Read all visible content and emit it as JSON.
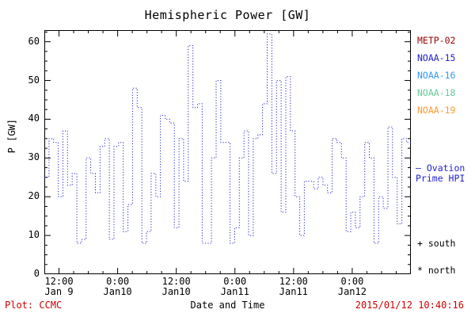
{
  "footer": {
    "left": "Plot: CCMC",
    "right": "2015/01/12 10:40:16",
    "color": "#cc0000"
  },
  "legend": {
    "satellites": [
      {
        "label": "METP-02",
        "color": "#990000"
      },
      {
        "label": "NOAA-15",
        "color": "#2222cc"
      },
      {
        "label": "NOAA-16",
        "color": "#3399ff"
      },
      {
        "label": "NOAA-18",
        "color": "#66cc99"
      },
      {
        "label": "NOAA-19",
        "color": "#ff9933"
      }
    ],
    "ovation": [
      "– Ovation",
      "Prime HPI"
    ],
    "markers": [
      "+ south",
      "* north"
    ]
  },
  "chart_data": {
    "type": "line",
    "subtype": "step-post",
    "line_style": "dotted",
    "title": "Hemispheric Power [GW]",
    "grid": false,
    "series": [
      {
        "name": "Ovation Prime HPI",
        "color": "#2222cc",
        "x_start_hour": 9,
        "x_step_hours": 0.95,
        "values": [
          25,
          35,
          34,
          20,
          37,
          23,
          26,
          8,
          9,
          30,
          26,
          21,
          33,
          35,
          9,
          33,
          34,
          11,
          18,
          48,
          43,
          8,
          11,
          26,
          20,
          41,
          40,
          39,
          12,
          35,
          24,
          59,
          43,
          44,
          8,
          8,
          30,
          50,
          34,
          34,
          8,
          12,
          30,
          37,
          10,
          35,
          36,
          44,
          62,
          26,
          50,
          16,
          51,
          37,
          20,
          10,
          24,
          24,
          22,
          25,
          23,
          21,
          35,
          34,
          30,
          11,
          16,
          12,
          20,
          34,
          30,
          8,
          20,
          17,
          38,
          25,
          13,
          35,
          34
        ]
      }
    ],
    "x_axis": {
      "label": "Date and Time",
      "range_hours": [
        9,
        84
      ],
      "minor_tick_hours": 3,
      "major_ticks": [
        {
          "hour": 12,
          "time": "12:00",
          "date": "Jan 9"
        },
        {
          "hour": 24,
          "time": "0:00",
          "date": "Jan10"
        },
        {
          "hour": 36,
          "time": "12:00",
          "date": "Jan10"
        },
        {
          "hour": 48,
          "time": "0:00",
          "date": "Jan11"
        },
        {
          "hour": 60,
          "time": "12:00",
          "date": "Jan11"
        },
        {
          "hour": 72,
          "time": "0:00",
          "date": "Jan12"
        }
      ]
    },
    "y_axis": {
      "label": "P [GW]",
      "range": [
        0,
        63
      ],
      "major_ticks": [
        0,
        10,
        20,
        30,
        40,
        50,
        60
      ],
      "minor_tick_step": 2.5
    }
  }
}
